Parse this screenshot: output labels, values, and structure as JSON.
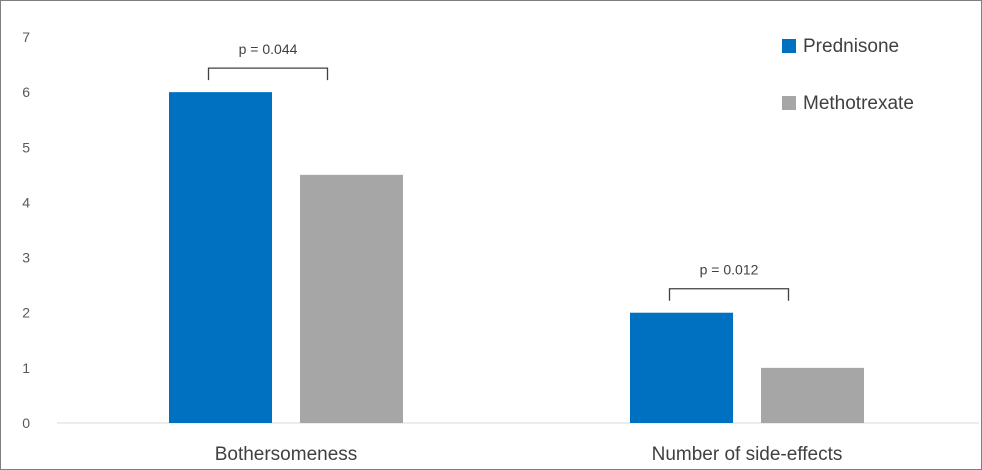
{
  "chart_data": {
    "type": "bar",
    "categories": [
      "Bothersomeness",
      "Number of side-effects"
    ],
    "series": [
      {
        "name": "Prednisone",
        "values": [
          6,
          2
        ],
        "color": "#0070C0"
      },
      {
        "name": "Methotrexate",
        "values": [
          4.5,
          1
        ],
        "color": "#A6A6A6"
      }
    ],
    "ylim": [
      0,
      7
    ],
    "yticks": [
      "0",
      "1",
      "2",
      "3",
      "4",
      "5",
      "6",
      "7"
    ],
    "grid": false,
    "legend_position": "top-right",
    "annotations": [
      {
        "category_index": 0,
        "text": "p = 0.044"
      },
      {
        "category_index": 1,
        "text": "p = 0.012"
      }
    ]
  }
}
